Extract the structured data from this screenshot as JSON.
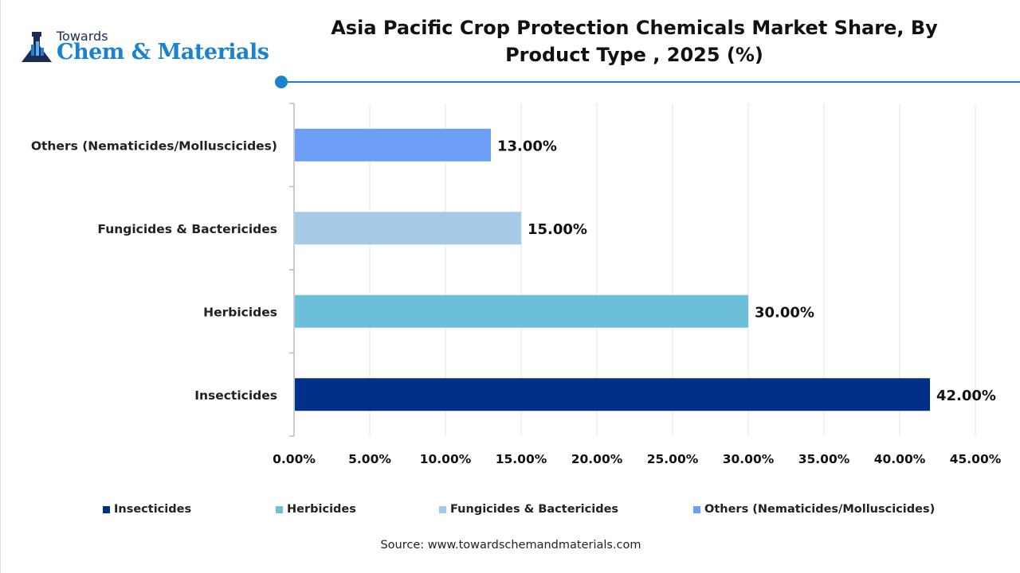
{
  "logo": {
    "line1": "Towards",
    "line2": "Chem & Materials"
  },
  "chart_data": {
    "type": "bar",
    "orientation": "horizontal",
    "title": "Asia Pacific Crop Protection Chemicals Market  Share, By Product Type , 2025 (%)",
    "categories": [
      "Insecticides",
      "Herbicides",
      "Fungicides & Bactericides",
      "Others (Nematicides/Molluscicides)"
    ],
    "values": [
      42,
      30,
      15,
      13
    ],
    "data_labels": [
      "42.00%",
      "30.00%",
      "15.00%",
      "13.00%"
    ],
    "colors": [
      "#003087",
      "#6bbfd9",
      "#a7c9e8",
      "#6d9ef5"
    ],
    "xlim": [
      0,
      45
    ],
    "x_ticks": [
      "0.00%",
      "5.00%",
      "10.00%",
      "15.00%",
      "20.00%",
      "25.00%",
      "30.00%",
      "35.00%",
      "40.00%",
      "45.00%"
    ],
    "grid": true,
    "legend_position": "bottom",
    "legend": [
      "Insecticides",
      "Herbicides",
      "Fungicides & Bactericides",
      "Others (Nematicides/Molluscicides)"
    ]
  },
  "source": "Source: www.towardschemandmaterials.com"
}
